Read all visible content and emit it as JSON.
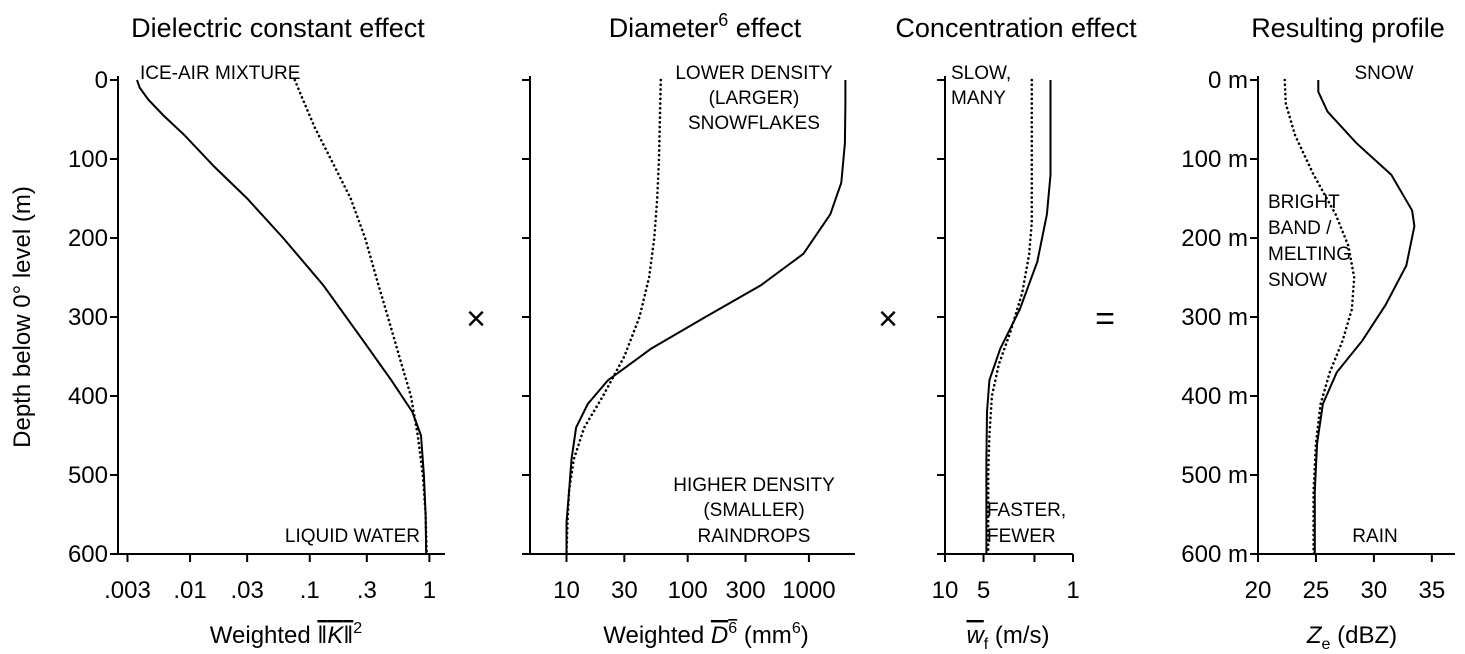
{
  "y_axis": {
    "label": "Depth below 0° level (m)",
    "ticks": [
      0,
      100,
      200,
      300,
      400,
      500,
      600
    ],
    "range": [
      0,
      600
    ]
  },
  "operators": [
    "×",
    "×",
    "="
  ],
  "chart_data": [
    {
      "type": "line",
      "title": "Dielectric constant effect",
      "xlabel": "Weighted |K|²",
      "x_scale": "log",
      "xlim": [
        0.0025,
        1.35
      ],
      "x_ticks": [
        0.003,
        0.01,
        0.03,
        0.1,
        0.3,
        1
      ],
      "x_tick_labels": [
        ".003",
        ".01",
        ".03",
        ".1",
        ".3",
        "1"
      ],
      "y_tick_labels": [
        "0",
        "100",
        "200",
        "300",
        "400",
        "500",
        "600"
      ],
      "annotations": [
        "ICE-AIR MIXTURE",
        "LIQUID WATER"
      ],
      "series": [
        {
          "style": "solid",
          "points": [
            [
              0.0036,
              0
            ],
            [
              0.0038,
              10
            ],
            [
              0.0045,
              25
            ],
            [
              0.006,
              45
            ],
            [
              0.009,
              70
            ],
            [
              0.016,
              110
            ],
            [
              0.03,
              150
            ],
            [
              0.06,
              200
            ],
            [
              0.13,
              260
            ],
            [
              0.28,
              330
            ],
            [
              0.48,
              380
            ],
            [
              0.72,
              420
            ],
            [
              0.85,
              450
            ],
            [
              0.9,
              500
            ],
            [
              0.93,
              550
            ],
            [
              0.94,
              600
            ]
          ]
        },
        {
          "style": "dotted",
          "points": [
            [
              0.075,
              0
            ],
            [
              0.085,
              20
            ],
            [
              0.11,
              60
            ],
            [
              0.15,
              100
            ],
            [
              0.22,
              150
            ],
            [
              0.29,
              200
            ],
            [
              0.36,
              250
            ],
            [
              0.45,
              300
            ],
            [
              0.56,
              350
            ],
            [
              0.7,
              400
            ],
            [
              0.8,
              450
            ],
            [
              0.88,
              500
            ],
            [
              0.93,
              550
            ],
            [
              0.95,
              600
            ]
          ]
        }
      ]
    },
    {
      "type": "line",
      "title": "Diameter⁶ effect",
      "xlabel": "Weighted D⁶ (mm⁶)",
      "x_scale": "log",
      "xlim": [
        5,
        2400
      ],
      "x_ticks": [
        10,
        30,
        100,
        300,
        1000
      ],
      "x_tick_labels": [
        "10",
        "30",
        "100",
        "300",
        "1000"
      ],
      "y_tick_labels": [],
      "annotations": [
        "LOWER DENSITY",
        "(LARGER)",
        "SNOWFLAKES",
        "HIGHER DENSITY",
        "(SMALLER)",
        "RAINDROPS"
      ],
      "series": [
        {
          "style": "solid",
          "points": [
            [
              2000,
              0
            ],
            [
              2000,
              30
            ],
            [
              1980,
              80
            ],
            [
              1850,
              130
            ],
            [
              1500,
              170
            ],
            [
              900,
              220
            ],
            [
              400,
              260
            ],
            [
              140,
              300
            ],
            [
              50,
              340
            ],
            [
              22,
              380
            ],
            [
              15,
              410
            ],
            [
              12,
              440
            ],
            [
              11,
              480
            ],
            [
              10.5,
              520
            ],
            [
              10,
              560
            ],
            [
              10,
              600
            ]
          ]
        },
        {
          "style": "dotted",
          "points": [
            [
              60,
              0
            ],
            [
              59,
              50
            ],
            [
              58,
              100
            ],
            [
              56,
              150
            ],
            [
              53,
              200
            ],
            [
              48,
              250
            ],
            [
              40,
              300
            ],
            [
              30,
              350
            ],
            [
              20,
              400
            ],
            [
              14,
              440
            ],
            [
              11.5,
              480
            ],
            [
              10.5,
              520
            ],
            [
              10.2,
              560
            ],
            [
              10,
              600
            ]
          ]
        }
      ]
    },
    {
      "type": "line",
      "title": "Concentration effect",
      "xlabel": "w̄f (m/s)",
      "x_scale": "log",
      "x_reversed": true,
      "xlim": [
        1,
        10
      ],
      "x_ticks": [
        10,
        5,
        2,
        1
      ],
      "x_tick_labels": [
        "10",
        "5",
        "",
        "1"
      ],
      "y_tick_labels": [],
      "annotations": [
        "SLOW,",
        "MANY",
        "FASTER,",
        "FEWER"
      ],
      "series": [
        {
          "style": "solid",
          "points": [
            [
              1.5,
              0
            ],
            [
              1.5,
              60
            ],
            [
              1.5,
              120
            ],
            [
              1.6,
              170
            ],
            [
              1.9,
              230
            ],
            [
              2.6,
              290
            ],
            [
              3.7,
              340
            ],
            [
              4.5,
              380
            ],
            [
              4.7,
              420
            ],
            [
              4.75,
              480
            ],
            [
              4.75,
              600
            ]
          ]
        },
        {
          "style": "dotted",
          "points": [
            [
              2.1,
              0
            ],
            [
              2.1,
              100
            ],
            [
              2.1,
              180
            ],
            [
              2.2,
              220
            ],
            [
              2.5,
              270
            ],
            [
              3.1,
              320
            ],
            [
              3.8,
              360
            ],
            [
              4.3,
              400
            ],
            [
              4.5,
              450
            ],
            [
              4.6,
              500
            ],
            [
              4.6,
              600
            ]
          ]
        }
      ]
    },
    {
      "type": "line",
      "title": "Resulting profile",
      "xlabel": "Ze (dBZ)",
      "x_scale": "linear",
      "xlim": [
        20,
        37
      ],
      "x_ticks": [
        20,
        25,
        30,
        35
      ],
      "x_tick_labels": [
        "20",
        "25",
        "30",
        "35"
      ],
      "y_tick_labels": [
        "0 m",
        "100 m",
        "200 m",
        "300 m",
        "400 m",
        "500 m",
        "600 m"
      ],
      "annotations": [
        "SNOW",
        "BRIGHT",
        "BAND /",
        "MELTING",
        "SNOW",
        "RAIN"
      ],
      "series": [
        {
          "style": "solid",
          "points": [
            [
              25.2,
              0
            ],
            [
              25.2,
              15
            ],
            [
              26,
              40
            ],
            [
              28.5,
              80
            ],
            [
              31.5,
              120
            ],
            [
              33.3,
              165
            ],
            [
              33.5,
              185
            ],
            [
              32.8,
              235
            ],
            [
              31,
              285
            ],
            [
              29,
              330
            ],
            [
              26.8,
              370
            ],
            [
              25.6,
              410
            ],
            [
              25.1,
              460
            ],
            [
              24.9,
              520
            ],
            [
              24.9,
              600
            ]
          ]
        },
        {
          "style": "dotted",
          "points": [
            [
              22.3,
              0
            ],
            [
              22.4,
              30
            ],
            [
              23.2,
              70
            ],
            [
              24.8,
              120
            ],
            [
              26.7,
              170
            ],
            [
              27.8,
              210
            ],
            [
              28.3,
              250
            ],
            [
              28.1,
              290
            ],
            [
              27.3,
              330
            ],
            [
              26.2,
              370
            ],
            [
              25.4,
              410
            ],
            [
              25,
              460
            ],
            [
              24.8,
              520
            ],
            [
              24.8,
              600
            ]
          ]
        }
      ]
    }
  ]
}
